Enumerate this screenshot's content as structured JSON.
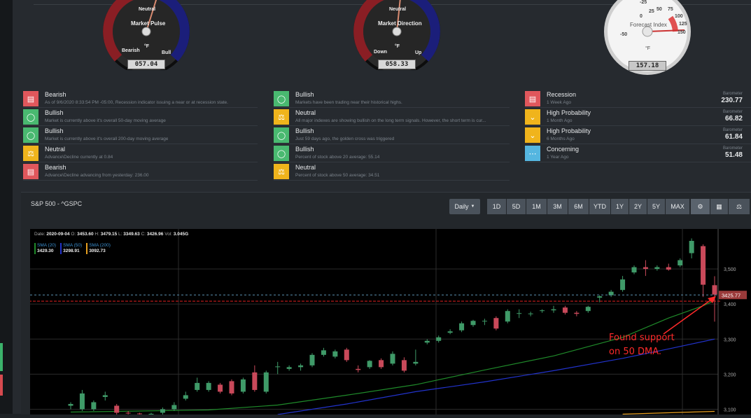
{
  "gauges": [
    {
      "title": "Market Pulse",
      "top_label": "Neutral",
      "left_label": "Bearish",
      "right_label": "Bull",
      "unit": "°F",
      "value": "057.04"
    },
    {
      "title": "Market Direction",
      "top_label": "Neutral",
      "left_label": "Down",
      "right_label": "Up",
      "unit": "°F",
      "value": "058.33"
    },
    {
      "title": "Forecast Index",
      "unit": "°F",
      "value": "157.18",
      "ticks": [
        "-25",
        "0",
        "25",
        "50",
        "75",
        "100",
        "125",
        "150",
        "-50"
      ]
    }
  ],
  "signals_col1": [
    {
      "title": "Bearish",
      "desc": "As of 9/6/2020 8:33:54 PM -05:00, Recession indicator issuing a near or at recession state.",
      "color": "red",
      "icon": "chat-icon"
    },
    {
      "title": "Bullish",
      "desc": "Market is currently above it's overall 50-day moving average",
      "color": "green",
      "icon": "gauge-icon"
    },
    {
      "title": "Bullish",
      "desc": "Market is currently above it's overall 200-day moving average",
      "color": "green",
      "icon": "gauge-icon"
    },
    {
      "title": "Neutral",
      "desc": "Advance\\Decline currently at 0.84",
      "color": "yellow",
      "icon": "scale-icon"
    },
    {
      "title": "Bearish",
      "desc": "Advance\\Decline advancing from yesterday: 236.00",
      "color": "red",
      "icon": "chat-icon"
    }
  ],
  "signals_col2": [
    {
      "title": "Bullish",
      "desc": "Markets have been trading near their historical highs.",
      "color": "green",
      "icon": "gauge-icon"
    },
    {
      "title": "Neutral",
      "desc": "All major indexes are showing bullish on the long term signals. However, the short term is cur...",
      "color": "yellow",
      "icon": "scale-icon"
    },
    {
      "title": "Bullish",
      "desc": "Just 59 days ago, the golden cross was triggered",
      "color": "green",
      "icon": "gauge-icon"
    },
    {
      "title": "Bullish",
      "desc": "Percent of stock above 20 average: 55.14",
      "color": "green",
      "icon": "gauge-icon"
    },
    {
      "title": "Neutral",
      "desc": "Percent of stock above 50 average: 34.51",
      "color": "yellow",
      "icon": "scale-icon"
    }
  ],
  "signals_col3": [
    {
      "title": "Recession",
      "desc": "1 Week Ago",
      "color": "red",
      "icon": "chat-icon",
      "baro_label": "Barometer",
      "baro_value": "230.77"
    },
    {
      "title": "High Probability",
      "desc": "1 Month Ago",
      "color": "yellow",
      "icon": "chevron-down-icon",
      "baro_label": "Barometer",
      "baro_value": "66.82"
    },
    {
      "title": "High Probability",
      "desc": "6 Months Ago",
      "color": "yellow",
      "icon": "chevron-down-icon",
      "baro_label": "Barometer",
      "baro_value": "61.84"
    },
    {
      "title": "Concerning",
      "desc": "1 Year Ago",
      "color": "blue",
      "icon": "ellipsis-icon",
      "baro_label": "Barometer",
      "baro_value": "51.48"
    }
  ],
  "chart_panel": {
    "title": "S&P 500 - ^GSPC",
    "interval": "Daily",
    "ranges": [
      "1D",
      "5D",
      "1M",
      "3M",
      "6M",
      "YTD",
      "1Y",
      "2Y",
      "5Y",
      "MAX"
    ]
  },
  "ohlc": {
    "date_label": "Date:",
    "date": "2020-09-04",
    "o_label": "O:",
    "o": "3453.60",
    "h_label": "H:",
    "h": "3479.15",
    "l_label": "L:",
    "l": "3349.63",
    "c_label": "C:",
    "c": "3426.96",
    "v_label": "Vol:",
    "v": "3.045G"
  },
  "legend": [
    {
      "name": "SMA (20)",
      "value": "3429.30",
      "color": "#1f8a2a"
    },
    {
      "name": "SMA (50)",
      "value": "3298.91",
      "color": "#2233cc"
    },
    {
      "name": "SMA (200)",
      "value": "3092.73",
      "color": "#e8a020"
    }
  ],
  "annotation": {
    "line1": "Found support",
    "line2": "on 50 DMA."
  },
  "chart_data": {
    "type": "candlestick",
    "yticks": [
      3100,
      3200,
      3300,
      3400,
      3500
    ],
    "ylim": [
      3085,
      3590
    ],
    "price_tag": "3425.77",
    "candles": [
      {
        "o": 3110,
        "h": 3120,
        "l": 3100,
        "c": 3115
      },
      {
        "o": 3100,
        "h": 3155,
        "l": 3095,
        "c": 3145
      },
      {
        "o": 3100,
        "h": 3125,
        "l": 3095,
        "c": 3120
      },
      {
        "o": 3135,
        "h": 3150,
        "l": 3125,
        "c": 3140
      },
      {
        "o": 3110,
        "h": 3115,
        "l": 3085,
        "c": 3090
      },
      {
        "o": 3090,
        "h": 3095,
        "l": 3085,
        "c": 3088
      },
      {
        "o": 3088,
        "h": 3090,
        "l": 3085,
        "c": 3086
      },
      {
        "o": 3085,
        "h": 3090,
        "l": 3080,
        "c": 3087
      },
      {
        "o": 3090,
        "h": 3105,
        "l": 3085,
        "c": 3100
      },
      {
        "o": 3100,
        "h": 3120,
        "l": 3095,
        "c": 3112
      },
      {
        "o": 3130,
        "h": 3150,
        "l": 3125,
        "c": 3140
      },
      {
        "o": 3155,
        "h": 3190,
        "l": 3150,
        "c": 3175
      },
      {
        "o": 3155,
        "h": 3180,
        "l": 3150,
        "c": 3175
      },
      {
        "o": 3170,
        "h": 3175,
        "l": 3145,
        "c": 3150
      },
      {
        "o": 3180,
        "h": 3185,
        "l": 3140,
        "c": 3145
      },
      {
        "o": 3150,
        "h": 3190,
        "l": 3145,
        "c": 3185
      },
      {
        "o": 3205,
        "h": 3225,
        "l": 3150,
        "c": 3155
      },
      {
        "o": 3150,
        "h": 3210,
        "l": 3145,
        "c": 3205
      },
      {
        "o": 3220,
        "h": 3235,
        "l": 3200,
        "c": 3222
      },
      {
        "o": 3215,
        "h": 3225,
        "l": 3210,
        "c": 3220
      },
      {
        "o": 3220,
        "h": 3230,
        "l": 3210,
        "c": 3225
      },
      {
        "o": 3225,
        "h": 3260,
        "l": 3220,
        "c": 3255
      },
      {
        "o": 3255,
        "h": 3275,
        "l": 3250,
        "c": 3268
      },
      {
        "o": 3250,
        "h": 3270,
        "l": 3245,
        "c": 3265
      },
      {
        "o": 3270,
        "h": 3275,
        "l": 3235,
        "c": 3240
      },
      {
        "o": 3215,
        "h": 3225,
        "l": 3205,
        "c": 3212
      },
      {
        "o": 3220,
        "h": 3240,
        "l": 3215,
        "c": 3238
      },
      {
        "o": 3240,
        "h": 3245,
        "l": 3215,
        "c": 3220
      },
      {
        "o": 3230,
        "h": 3265,
        "l": 3225,
        "c": 3258
      },
      {
        "o": 3240,
        "h": 3248,
        "l": 3205,
        "c": 3210
      },
      {
        "o": 3230,
        "h": 3270,
        "l": 3225,
        "c": 3235
      },
      {
        "o": 3290,
        "h": 3300,
        "l": 3285,
        "c": 3295
      },
      {
        "o": 3295,
        "h": 3310,
        "l": 3290,
        "c": 3305
      },
      {
        "o": 3318,
        "h": 3328,
        "l": 3314,
        "c": 3322
      },
      {
        "o": 3325,
        "h": 3350,
        "l": 3320,
        "c": 3345
      },
      {
        "o": 3340,
        "h": 3355,
        "l": 3335,
        "c": 3352
      },
      {
        "o": 3350,
        "h": 3358,
        "l": 3340,
        "c": 3352
      },
      {
        "o": 3360,
        "h": 3365,
        "l": 3325,
        "c": 3330
      },
      {
        "o": 3350,
        "h": 3385,
        "l": 3345,
        "c": 3380
      },
      {
        "o": 3372,
        "h": 3385,
        "l": 3360,
        "c": 3374
      },
      {
        "o": 3372,
        "h": 3378,
        "l": 3365,
        "c": 3373
      },
      {
        "o": 3380,
        "h": 3385,
        "l": 3375,
        "c": 3382
      },
      {
        "o": 3382,
        "h": 3395,
        "l": 3375,
        "c": 3385
      },
      {
        "o": 3390,
        "h": 3395,
        "l": 3370,
        "c": 3375
      },
      {
        "o": 3375,
        "h": 3380,
        "l": 3365,
        "c": 3372
      },
      {
        "o": 3380,
        "h": 3395,
        "l": 3375,
        "c": 3392
      },
      {
        "o": 3418,
        "h": 3425,
        "l": 3405,
        "c": 3422
      },
      {
        "o": 3425,
        "h": 3440,
        "l": 3420,
        "c": 3435
      },
      {
        "o": 3440,
        "h": 3480,
        "l": 3435,
        "c": 3470
      },
      {
        "o": 3490,
        "h": 3510,
        "l": 3485,
        "c": 3505
      },
      {
        "o": 3505,
        "h": 3525,
        "l": 3480,
        "c": 3500
      },
      {
        "o": 3500,
        "h": 3510,
        "l": 3495,
        "c": 3505
      },
      {
        "o": 3505,
        "h": 3515,
        "l": 3495,
        "c": 3498
      },
      {
        "o": 3510,
        "h": 3530,
        "l": 3505,
        "c": 3525
      },
      {
        "o": 3545,
        "h": 3587,
        "l": 3530,
        "c": 3580
      },
      {
        "o": 3565,
        "h": 3570,
        "l": 3420,
        "c": 3455
      },
      {
        "o": 3453.6,
        "h": 3479.15,
        "l": 3349.63,
        "c": 3426.96
      }
    ],
    "sma20": [
      [
        0,
        3092
      ],
      [
        8,
        3096
      ],
      [
        12,
        3098
      ],
      [
        18,
        3112
      ],
      [
        24,
        3140
      ],
      [
        30,
        3170
      ],
      [
        36,
        3212
      ],
      [
        42,
        3252
      ],
      [
        48,
        3305
      ],
      [
        52,
        3360
      ],
      [
        55,
        3395
      ],
      [
        56,
        3410
      ]
    ],
    "sma50": [
      [
        18,
        3085
      ],
      [
        24,
        3115
      ],
      [
        30,
        3150
      ],
      [
        36,
        3178
      ],
      [
        42,
        3210
      ],
      [
        48,
        3245
      ],
      [
        52,
        3272
      ],
      [
        56,
        3300
      ]
    ],
    "sma200": [
      [
        48,
        3086
      ],
      [
        56,
        3094
      ]
    ],
    "support_level": 3408
  }
}
